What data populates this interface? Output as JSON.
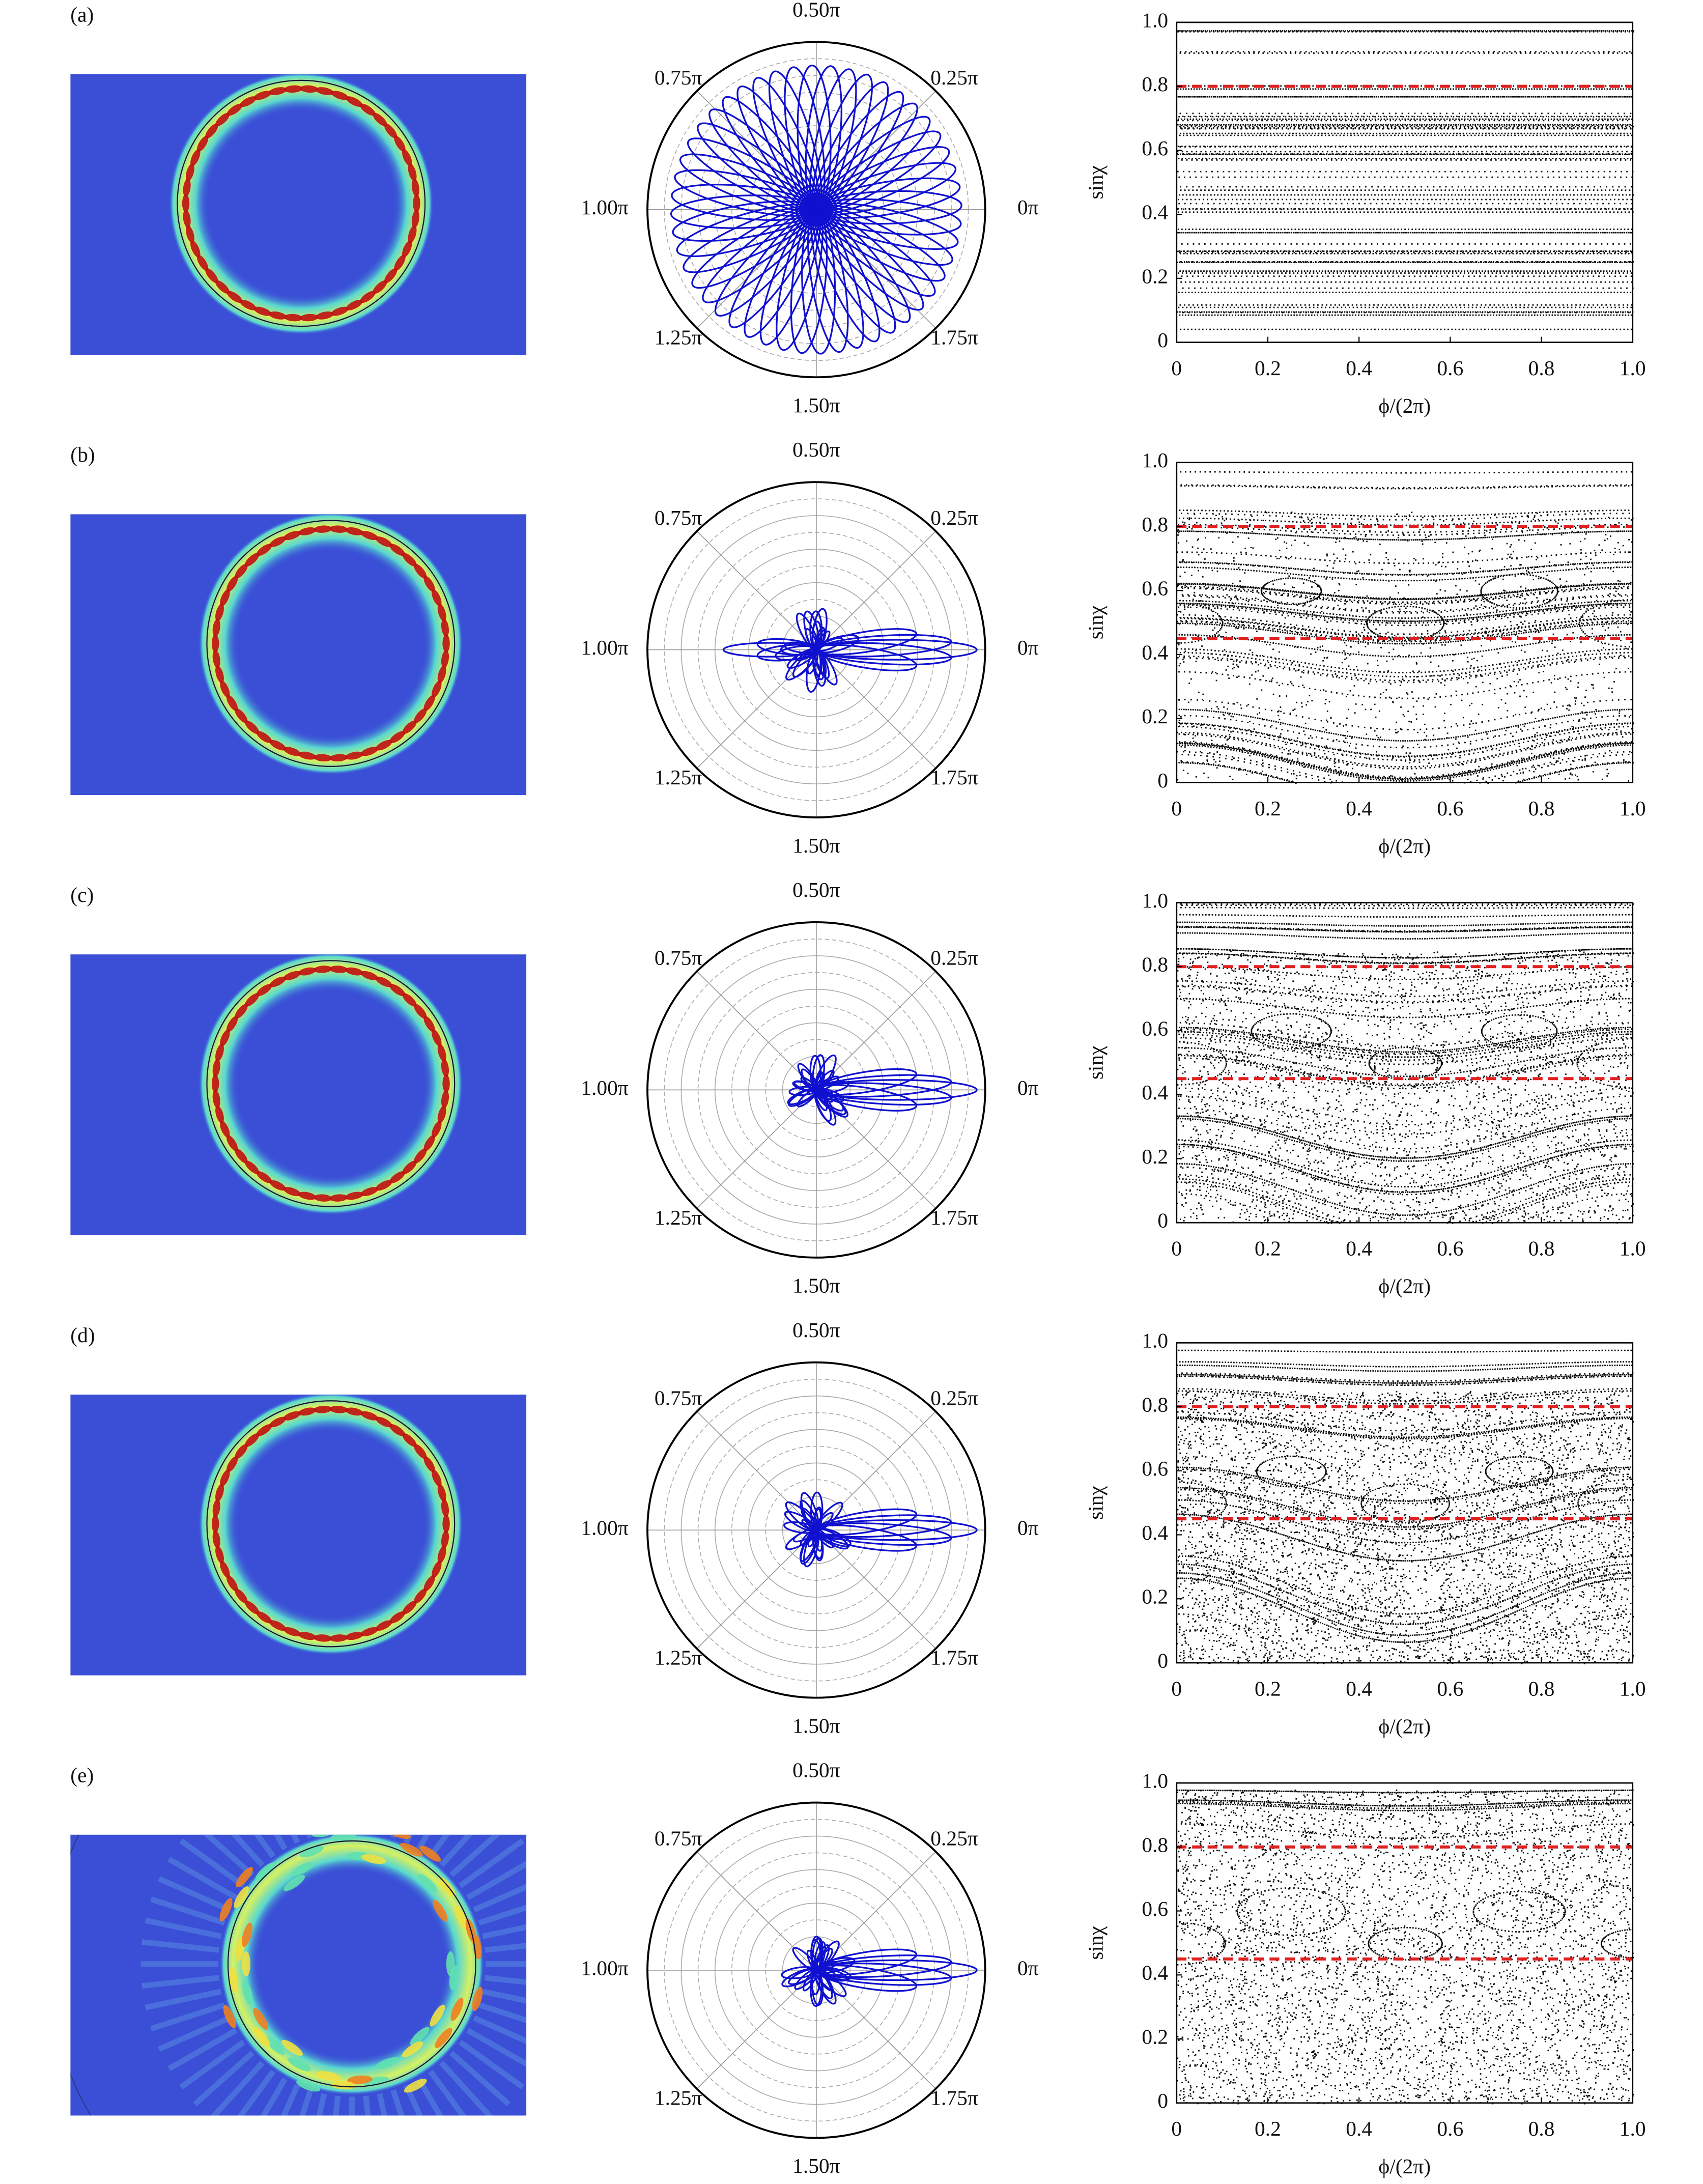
{
  "panels": [
    {
      "label": "(a)",
      "polar": {
        "type": "polar",
        "angle_ticks": [
          {
            "value": 0,
            "label": "0π"
          },
          {
            "value": 0.25,
            "label": "0.25π"
          },
          {
            "value": 0.5,
            "label": "0.50π"
          },
          {
            "value": 0.75,
            "label": "0.75π"
          },
          {
            "value": 1,
            "label": "1.00π"
          },
          {
            "value": 1.25,
            "label": "1.25π"
          },
          {
            "value": 1.5,
            "label": "1.50π"
          },
          {
            "value": 1.75,
            "label": "1.75π"
          }
        ]
      },
      "poincare": {
        "type": "scatter",
        "xlabel": "ϕ/(2π)",
        "ylabel": "sinχ",
        "xlim": [
          0,
          1
        ],
        "ylim": [
          0,
          1
        ],
        "xticks": [
          0,
          0.2,
          0.4,
          0.6,
          0.8,
          {
            "value": 1,
            "label": "1.0"
          }
        ],
        "yticks": [
          0,
          0.2,
          0.4,
          0.6,
          0.8,
          {
            "value": 1,
            "label": "1.0"
          }
        ],
        "reference_lines": [
          0.8
        ],
        "reference_color": "#e02020"
      }
    },
    {
      "label": "(b)",
      "polar": {
        "type": "polar",
        "angle_ticks": [
          {
            "value": 0,
            "label": "0π"
          },
          {
            "value": 0.25,
            "label": "0.25π"
          },
          {
            "value": 0.5,
            "label": "0.50π"
          },
          {
            "value": 0.75,
            "label": "0.75π"
          },
          {
            "value": 1,
            "label": "1.00π"
          },
          {
            "value": 1.25,
            "label": "1.25π"
          },
          {
            "value": 1.5,
            "label": "1.50π"
          },
          {
            "value": 1.75,
            "label": "1.75π"
          }
        ]
      },
      "poincare": {
        "type": "scatter",
        "xlabel": "ϕ/(2π)",
        "ylabel": "sinχ",
        "xlim": [
          0,
          1
        ],
        "ylim": [
          0,
          1
        ],
        "xticks": [
          0,
          0.2,
          0.4,
          0.6,
          0.8,
          {
            "value": 1,
            "label": "1.0"
          }
        ],
        "yticks": [
          0,
          0.2,
          0.4,
          0.6,
          0.8,
          {
            "value": 1,
            "label": "1.0"
          }
        ],
        "reference_lines": [
          0.8,
          0.45
        ],
        "reference_color": "#e02020"
      }
    },
    {
      "label": "(c)",
      "polar": {
        "type": "polar",
        "angle_ticks": [
          {
            "value": 0,
            "label": "0π"
          },
          {
            "value": 0.25,
            "label": "0.25π"
          },
          {
            "value": 0.5,
            "label": "0.50π"
          },
          {
            "value": 0.75,
            "label": "0.75π"
          },
          {
            "value": 1,
            "label": "1.00π"
          },
          {
            "value": 1.25,
            "label": "1.25π"
          },
          {
            "value": 1.5,
            "label": "1.50π"
          },
          {
            "value": 1.75,
            "label": "1.75π"
          }
        ]
      },
      "poincare": {
        "type": "scatter",
        "xlabel": "ϕ/(2π)",
        "ylabel": "sinχ",
        "xlim": [
          0,
          1
        ],
        "ylim": [
          0,
          1
        ],
        "xticks": [
          0,
          0.2,
          0.4,
          0.6,
          0.8,
          {
            "value": 1,
            "label": "1.0"
          }
        ],
        "yticks": [
          0,
          0.2,
          0.4,
          0.6,
          0.8,
          {
            "value": 1,
            "label": "1.0"
          }
        ],
        "reference_lines": [
          0.8,
          0.45
        ],
        "reference_color": "#e02020"
      }
    },
    {
      "label": "(d)",
      "polar": {
        "type": "polar",
        "angle_ticks": [
          {
            "value": 0,
            "label": "0π"
          },
          {
            "value": 0.25,
            "label": "0.25π"
          },
          {
            "value": 0.5,
            "label": "0.50π"
          },
          {
            "value": 0.75,
            "label": "0.75π"
          },
          {
            "value": 1,
            "label": "1.00π"
          },
          {
            "value": 1.25,
            "label": "1.25π"
          },
          {
            "value": 1.5,
            "label": "1.50π"
          },
          {
            "value": 1.75,
            "label": "1.75π"
          }
        ]
      },
      "poincare": {
        "type": "scatter",
        "xlabel": "ϕ/(2π)",
        "ylabel": "sinχ",
        "xlim": [
          0,
          1
        ],
        "ylim": [
          0,
          1
        ],
        "xticks": [
          0,
          0.2,
          0.4,
          0.6,
          0.8,
          {
            "value": 1,
            "label": "1.0"
          }
        ],
        "yticks": [
          0,
          0.2,
          0.4,
          0.6,
          0.8,
          {
            "value": 1,
            "label": "1.0"
          }
        ],
        "reference_lines": [
          0.8,
          0.45
        ],
        "reference_color": "#e02020"
      }
    },
    {
      "label": "(e)",
      "polar": {
        "type": "polar",
        "angle_ticks": [
          {
            "value": 0,
            "label": "0π"
          },
          {
            "value": 0.25,
            "label": "0.25π"
          },
          {
            "value": 0.5,
            "label": "0.50π"
          },
          {
            "value": 0.75,
            "label": "0.75π"
          },
          {
            "value": 1,
            "label": "1.00π"
          },
          {
            "value": 1.25,
            "label": "1.25π"
          },
          {
            "value": 1.5,
            "label": "1.50π"
          },
          {
            "value": 1.75,
            "label": "1.75π"
          }
        ]
      },
      "poincare": {
        "type": "scatter",
        "xlabel": "ϕ/(2π)",
        "ylabel": "sinχ",
        "xlim": [
          0,
          1
        ],
        "ylim": [
          0,
          1
        ],
        "xticks": [
          0,
          0.2,
          0.4,
          0.6,
          0.8,
          {
            "value": 1,
            "label": "1.0"
          }
        ],
        "yticks": [
          0,
          0.2,
          0.4,
          0.6,
          0.8,
          {
            "value": 1,
            "label": "1.0"
          }
        ],
        "reference_lines": [
          0.8,
          0.45
        ],
        "reference_color": "#e02020"
      }
    }
  ]
}
